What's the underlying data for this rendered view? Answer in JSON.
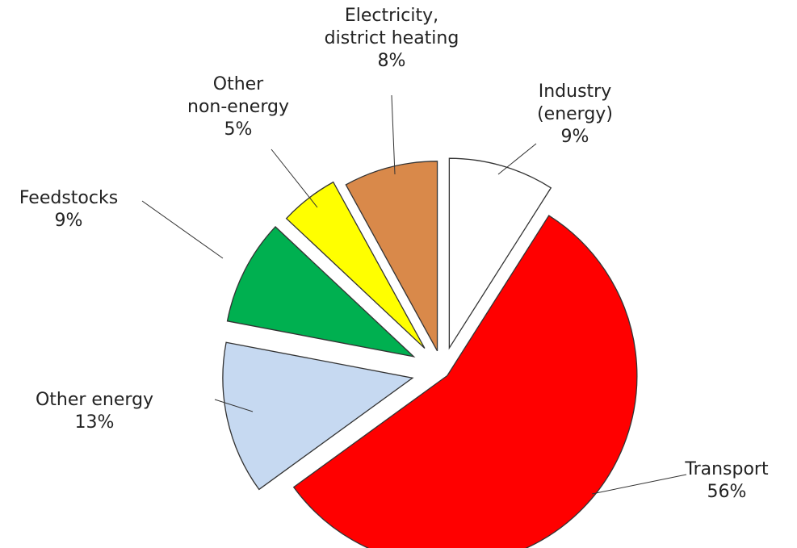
{
  "chart_data": {
    "type": "pie",
    "title": "",
    "unit": "%",
    "legend": "none",
    "slices": [
      {
        "name": "Industry (energy)",
        "label_lines": [
          "Industry",
          "(energy)",
          "9%"
        ],
        "value": 9,
        "color": "#ffffff"
      },
      {
        "name": "Transport",
        "label_lines": [
          "Transport",
          "56%"
        ],
        "value": 56,
        "color": "#ff0000"
      },
      {
        "name": "Other energy",
        "label_lines": [
          "Other energy",
          "13%"
        ],
        "value": 13,
        "color": "#c6d9f1"
      },
      {
        "name": "Feedstocks",
        "label_lines": [
          "Feedstocks",
          "9%"
        ],
        "value": 9,
        "color": "#00b050"
      },
      {
        "name": "Other non-energy",
        "label_lines": [
          "Other",
          "non-energy",
          "5%"
        ],
        "value": 5,
        "color": "#ffff00"
      },
      {
        "name": "Electricity, district heating",
        "label_lines": [
          "Electricity,",
          "district heating",
          "8%"
        ],
        "value": 8,
        "color": "#d9894a"
      }
    ]
  }
}
